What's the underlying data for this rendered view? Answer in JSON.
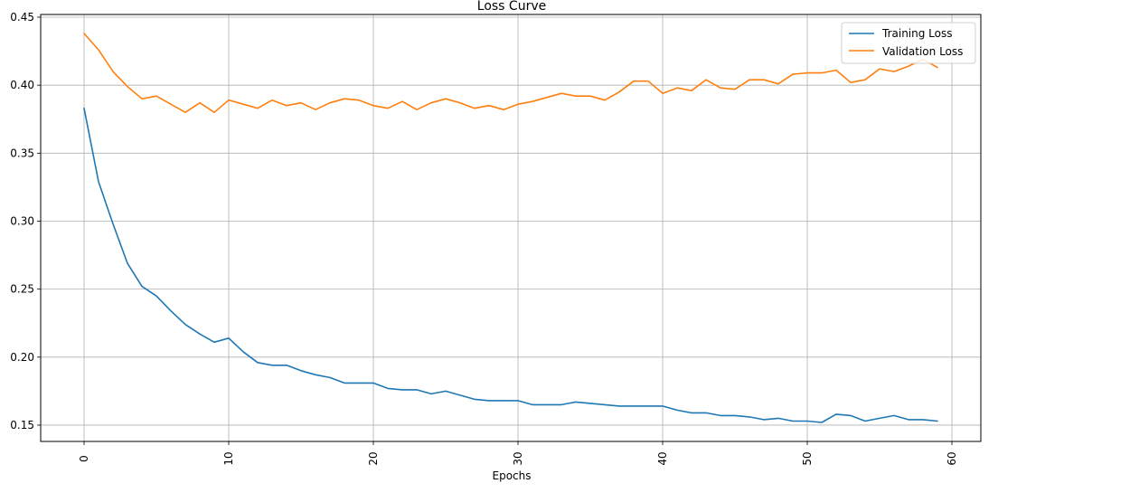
{
  "chart_data": {
    "type": "line",
    "title": "Loss Curve",
    "xlabel": "Epochs",
    "ylabel": "",
    "xlim": [
      -3,
      62
    ],
    "ylim": [
      0.138,
      0.452
    ],
    "xticks": [
      0,
      10,
      20,
      30,
      40,
      50,
      60
    ],
    "yticks": [
      0.15,
      0.2,
      0.25,
      0.3,
      0.35,
      0.4,
      0.45
    ],
    "ytick_labels": [
      "0.15",
      "0.20",
      "0.25",
      "0.30",
      "0.35",
      "0.40",
      "0.45"
    ],
    "xtick_labels": [
      "0",
      "10",
      "20",
      "30",
      "40",
      "50",
      "60"
    ],
    "grid": true,
    "legend_position": "top-right",
    "x": [
      0,
      1,
      2,
      3,
      4,
      5,
      6,
      7,
      8,
      9,
      10,
      11,
      12,
      13,
      14,
      15,
      16,
      17,
      18,
      19,
      20,
      21,
      22,
      23,
      24,
      25,
      26,
      27,
      28,
      29,
      30,
      31,
      32,
      33,
      34,
      35,
      36,
      37,
      38,
      39,
      40,
      41,
      42,
      43,
      44,
      45,
      46,
      47,
      48,
      49,
      50,
      51,
      52,
      53,
      54,
      55,
      56,
      57,
      58,
      59
    ],
    "series": [
      {
        "name": "Training Loss",
        "color": "#1f77b4",
        "values": [
          0.383,
          0.329,
          0.298,
          0.269,
          0.252,
          0.245,
          0.234,
          0.224,
          0.217,
          0.211,
          0.214,
          0.204,
          0.196,
          0.194,
          0.194,
          0.19,
          0.187,
          0.185,
          0.181,
          0.181,
          0.181,
          0.177,
          0.176,
          0.176,
          0.173,
          0.175,
          0.172,
          0.169,
          0.168,
          0.168,
          0.168,
          0.165,
          0.165,
          0.165,
          0.167,
          0.166,
          0.165,
          0.164,
          0.164,
          0.164,
          0.164,
          0.161,
          0.159,
          0.159,
          0.157,
          0.157,
          0.156,
          0.154,
          0.155,
          0.153,
          0.153,
          0.152,
          0.158,
          0.157,
          0.153,
          0.155,
          0.157,
          0.154,
          0.154,
          0.153
        ]
      },
      {
        "name": "Validation Loss",
        "color": "#ff7f0e",
        "values": [
          0.438,
          0.426,
          0.41,
          0.399,
          0.39,
          0.392,
          0.386,
          0.38,
          0.387,
          0.38,
          0.389,
          0.386,
          0.383,
          0.389,
          0.385,
          0.387,
          0.382,
          0.387,
          0.39,
          0.389,
          0.385,
          0.383,
          0.388,
          0.382,
          0.387,
          0.39,
          0.387,
          0.383,
          0.385,
          0.382,
          0.386,
          0.388,
          0.391,
          0.394,
          0.392,
          0.392,
          0.389,
          0.395,
          0.403,
          0.403,
          0.394,
          0.398,
          0.396,
          0.404,
          0.398,
          0.397,
          0.404,
          0.404,
          0.401,
          0.408,
          0.409,
          0.409,
          0.411,
          0.402,
          0.404,
          0.412,
          0.41,
          0.414,
          0.419,
          0.413
        ]
      }
    ]
  }
}
